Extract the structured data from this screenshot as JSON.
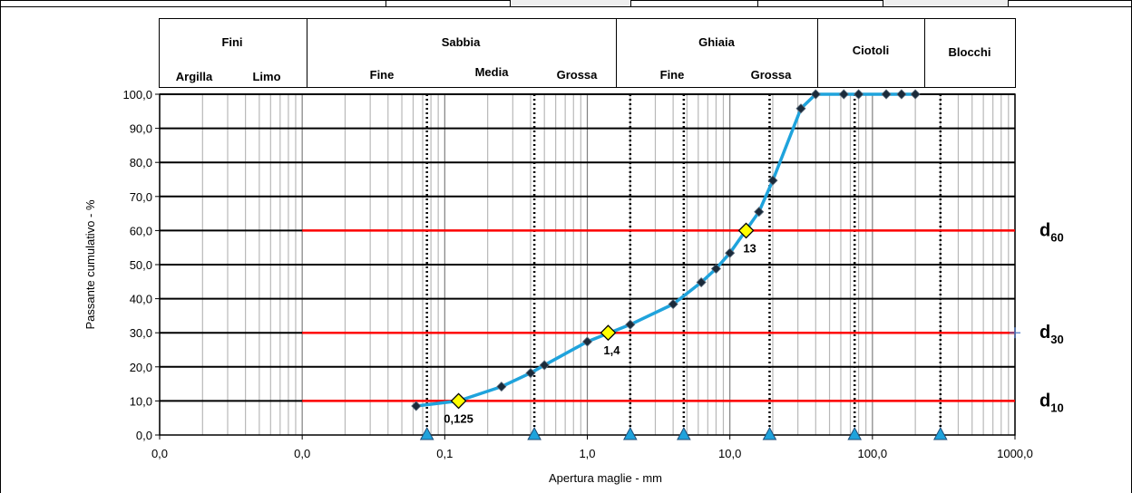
{
  "header": {
    "columns": [
      {
        "title": "Fini",
        "subs": [
          "Argilla",
          "Limo"
        ]
      },
      {
        "title": "Sabbia",
        "subs": [
          "Fine",
          "Media",
          "Grossa"
        ]
      },
      {
        "title": "Ghiaia",
        "subs": [
          "Fine",
          "Grossa"
        ]
      },
      {
        "title": "Ciotoli",
        "subs": []
      },
      {
        "title": "Blocchi",
        "subs": []
      }
    ]
  },
  "chart_data": {
    "type": "scatter",
    "title": "",
    "xlabel": "Apertura maglie - mm",
    "ylabel": "Passante cumulativo - %",
    "x_scale": "log",
    "xlim": [
      0.001,
      1000
    ],
    "ylim": [
      0,
      100
    ],
    "x_tick_labels": [
      "0,0",
      "0,0",
      "0,1",
      "1,0",
      "10,0",
      "100,0",
      "1000,0"
    ],
    "y_tick_labels": [
      "0,0",
      "10,0",
      "20,0",
      "30,0",
      "40,0",
      "50,0",
      "60,0",
      "70,0",
      "80,0",
      "90,0",
      "100,0"
    ],
    "grid": true,
    "series": [
      {
        "color": "#1fa3dc",
        "x": [
          0.063,
          0.125,
          0.25,
          0.4,
          0.5,
          1.0,
          2.0,
          4.0,
          6.3,
          8.0,
          10.0,
          16.0,
          20.0,
          31.5,
          40.0,
          63.0,
          80.0,
          125.0,
          160.0,
          200.0
        ],
        "y": [
          8.5,
          10.0,
          14.2,
          18.2,
          20.5,
          27.4,
          32.4,
          38.4,
          44.8,
          48.8,
          53.4,
          65.5,
          74.7,
          95.8,
          100.0,
          100.0,
          100.0,
          100.0,
          100.0,
          100.0
        ]
      }
    ],
    "characteristic_points": [
      {
        "x": 0.125,
        "y": 10,
        "label": "0,125"
      },
      {
        "x": 1.4,
        "y": 30,
        "label": "1,4"
      },
      {
        "x": 13,
        "y": 60,
        "label": "13"
      }
    ],
    "reference_lines": [
      {
        "y": 60,
        "label": "d",
        "sub": "60",
        "color": "#ff0000"
      },
      {
        "y": 30,
        "label": "d",
        "sub": "30",
        "color": "#ff0000"
      },
      {
        "y": 10,
        "label": "d",
        "sub": "10",
        "color": "#ff0000"
      }
    ],
    "class_boundaries_mm": [
      0.075,
      0.425,
      2.0,
      4.75,
      19.0,
      75.0,
      300.0
    ],
    "colors": {
      "curve": "#1fa3dc",
      "marker": "#1a2a3a",
      "highlight": "#ffff00",
      "refline": "#ff0000",
      "triangle": "#1fa3dc"
    }
  }
}
